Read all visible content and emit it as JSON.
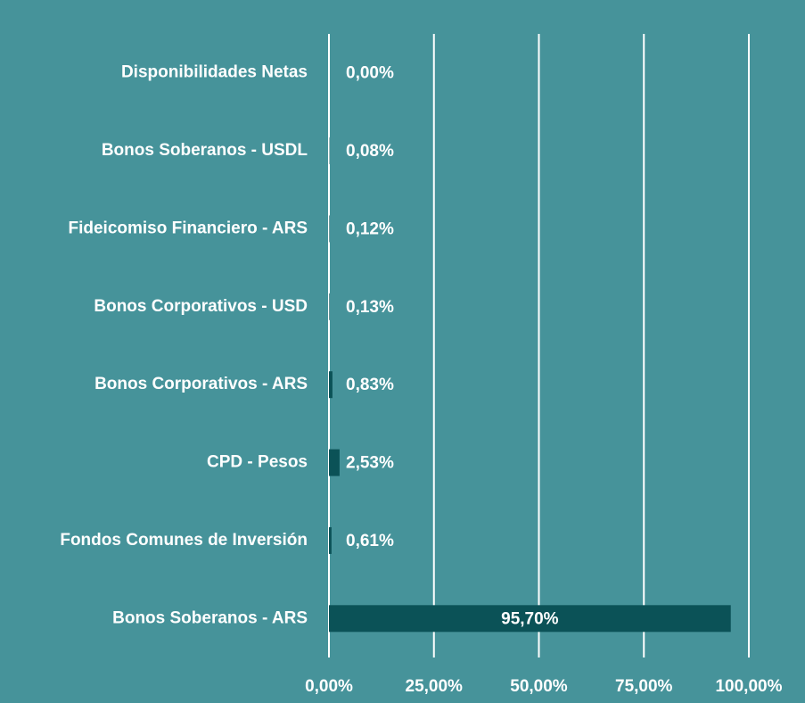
{
  "chart_data": {
    "type": "barh",
    "categories": [
      "Disponibilidades Netas",
      "Bonos Soberanos - USDL",
      "Fideicomiso Financiero - ARS",
      "Bonos Corporativos - USD",
      "Bonos Corporativos - ARS",
      "CPD - Pesos",
      "Fondos Comunes de Inversión",
      "Bonos Soberanos - ARS"
    ],
    "values": [
      0.0,
      0.08,
      0.12,
      0.13,
      0.83,
      2.53,
      0.61,
      95.7
    ],
    "value_labels": [
      "0,00%",
      "0,08%",
      "0,12%",
      "0,13%",
      "0,83%",
      "2,53%",
      "0,61%",
      "95,70%"
    ],
    "color": "#0b5257",
    "xlim": [
      0,
      100
    ],
    "xticks": [
      {
        "value": 0,
        "label": "0,00%"
      },
      {
        "value": 25,
        "label": "25,00%"
      },
      {
        "value": 50,
        "label": "50,00%"
      },
      {
        "value": 75,
        "label": "75,00%"
      },
      {
        "value": 100,
        "label": "100,00%"
      }
    ],
    "grid": true
  }
}
